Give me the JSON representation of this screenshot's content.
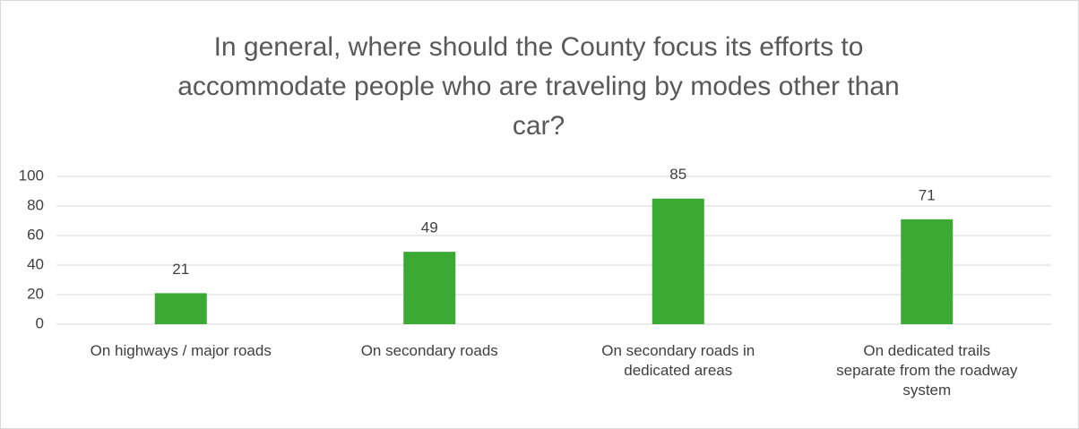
{
  "chart_data": {
    "type": "bar",
    "title": "In general, where should the County focus its efforts to accommodate people who are traveling by modes other than car?",
    "categories": [
      "On highways / major roads",
      "On secondary roads",
      "On secondary roads in dedicated areas",
      "On dedicated trails separate from the roadway system"
    ],
    "values": [
      21,
      49,
      85,
      71
    ],
    "color": "#3aaa35",
    "ylim": [
      0,
      100
    ],
    "yticks": [
      0,
      20,
      40,
      60,
      80,
      100
    ],
    "grid": true
  }
}
